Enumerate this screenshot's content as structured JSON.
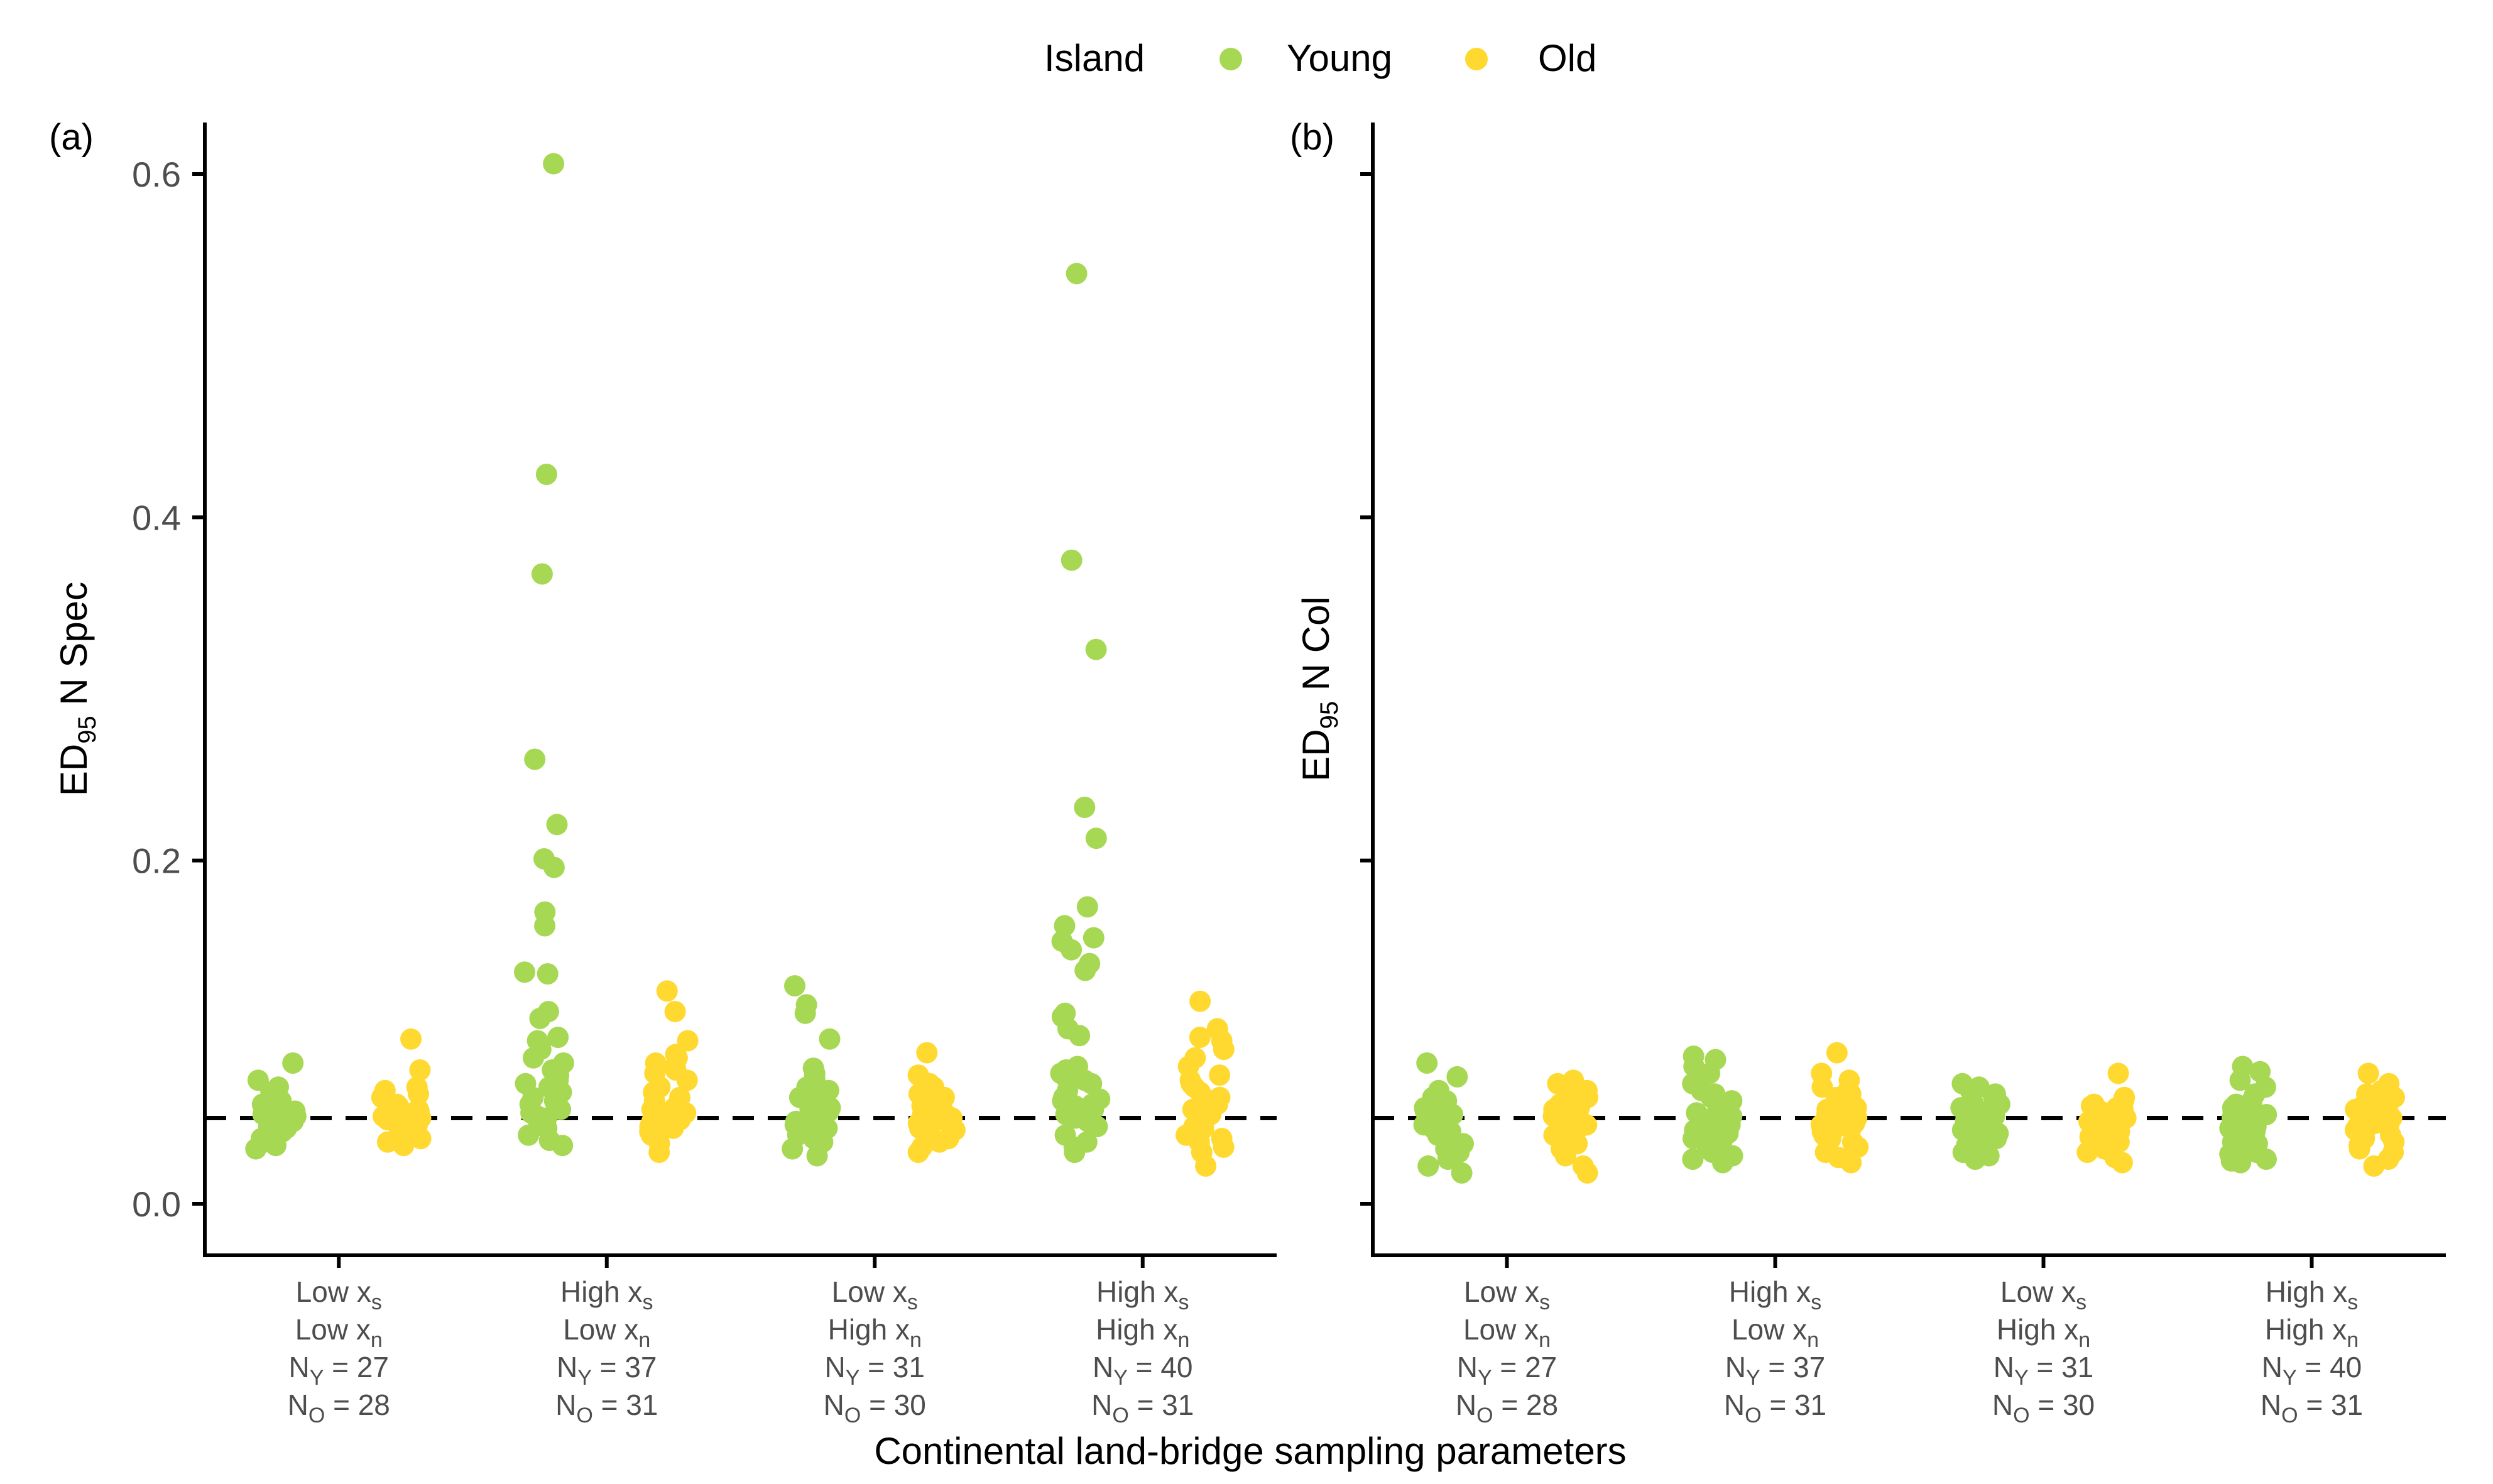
{
  "legend": {
    "title": "Island",
    "items": [
      {
        "label": "Young",
        "color": "#a6d854"
      },
      {
        "label": "Old",
        "color": "#ffd92f"
      }
    ],
    "placement": "top"
  },
  "xlabel": "Continental land-bridge sampling parameters",
  "chart_data": [
    {
      "type": "scatter",
      "panel_label": "(a)",
      "ylabel": {
        "main": "ED",
        "sub": "95",
        "rest": " N Spec"
      },
      "ylim": [
        -0.03,
        0.63
      ],
      "yticks": [
        0.0,
        0.2,
        0.4,
        0.6
      ],
      "ytick_labels": [
        "0.0",
        "0.2",
        "0.4",
        "0.6"
      ],
      "reference_line": 0.05,
      "grid": false,
      "categories": [
        {
          "line1": "Low x",
          "sub1": "s",
          "line2": "Low x",
          "sub2": "n",
          "ny": "27",
          "no": "28"
        },
        {
          "line1": "High x",
          "sub1": "s",
          "line2": "Low x",
          "sub2": "n",
          "ny": "37",
          "no": "31"
        },
        {
          "line1": "Low x",
          "sub1": "s",
          "line2": "High x",
          "sub2": "n",
          "ny": "31",
          "no": "30"
        },
        {
          "line1": "High x",
          "sub1": "s",
          "line2": "High x",
          "sub2": "n",
          "ny": "40",
          "no": "31"
        }
      ],
      "series": [
        {
          "name": "Young",
          "color": "#a6d854",
          "values": [
            [
              0.082,
              0.072,
              0.068,
              0.065,
              0.062,
              0.06,
              0.058,
              0.056,
              0.055,
              0.054,
              0.053,
              0.052,
              0.051,
              0.05,
              0.049,
              0.048,
              0.047,
              0.046,
              0.045,
              0.044,
              0.043,
              0.042,
              0.04,
              0.038,
              0.036,
              0.034,
              0.032
            ],
            [
              0.606,
              0.425,
              0.367,
              0.259,
              0.221,
              0.196,
              0.201,
              0.17,
              0.162,
              0.135,
              0.134,
              0.112,
              0.108,
              0.097,
              0.095,
              0.09,
              0.085,
              0.082,
              0.078,
              0.075,
              0.072,
              0.07,
              0.068,
              0.065,
              0.062,
              0.06,
              0.058,
              0.055,
              0.053,
              0.051,
              0.05,
              0.048,
              0.046,
              0.044,
              0.04,
              0.037,
              0.034
            ],
            [
              0.127,
              0.116,
              0.111,
              0.096,
              0.079,
              0.076,
              0.074,
              0.072,
              0.07,
              0.068,
              0.066,
              0.064,
              0.062,
              0.06,
              0.058,
              0.056,
              0.055,
              0.054,
              0.052,
              0.05,
              0.049,
              0.048,
              0.046,
              0.045,
              0.044,
              0.042,
              0.04,
              0.038,
              0.036,
              0.032,
              0.028
            ],
            [
              0.542,
              0.375,
              0.323,
              0.231,
              0.213,
              0.173,
              0.162,
              0.155,
              0.153,
              0.148,
              0.14,
              0.136,
              0.111,
              0.109,
              0.102,
              0.098,
              0.08,
              0.078,
              0.076,
              0.074,
              0.072,
              0.07,
              0.066,
              0.064,
              0.062,
              0.061,
              0.06,
              0.058,
              0.057,
              0.056,
              0.055,
              0.054,
              0.052,
              0.05,
              0.048,
              0.045,
              0.04,
              0.036,
              0.033,
              0.03
            ]
          ]
        },
        {
          "name": "Old",
          "color": "#ffd92f",
          "values": [
            [
              0.096,
              0.078,
              0.068,
              0.066,
              0.064,
              0.062,
              0.06,
              0.058,
              0.057,
              0.056,
              0.055,
              0.054,
              0.053,
              0.052,
              0.051,
              0.05,
              0.049,
              0.048,
              0.047,
              0.046,
              0.045,
              0.044,
              0.043,
              0.042,
              0.04,
              0.038,
              0.036,
              0.034
            ],
            [
              0.124,
              0.112,
              0.095,
              0.087,
              0.085,
              0.082,
              0.08,
              0.078,
              0.076,
              0.072,
              0.068,
              0.065,
              0.062,
              0.06,
              0.058,
              0.056,
              0.055,
              0.054,
              0.053,
              0.052,
              0.051,
              0.05,
              0.049,
              0.048,
              0.046,
              0.045,
              0.044,
              0.042,
              0.04,
              0.035,
              0.03
            ],
            [
              0.088,
              0.075,
              0.07,
              0.068,
              0.066,
              0.064,
              0.062,
              0.06,
              0.058,
              0.057,
              0.056,
              0.055,
              0.054,
              0.053,
              0.052,
              0.051,
              0.05,
              0.049,
              0.048,
              0.047,
              0.046,
              0.045,
              0.044,
              0.043,
              0.042,
              0.04,
              0.038,
              0.036,
              0.033,
              0.03
            ],
            [
              0.118,
              0.102,
              0.097,
              0.095,
              0.09,
              0.085,
              0.08,
              0.075,
              0.072,
              0.07,
              0.068,
              0.065,
              0.062,
              0.06,
              0.058,
              0.056,
              0.055,
              0.054,
              0.052,
              0.05,
              0.048,
              0.046,
              0.045,
              0.044,
              0.042,
              0.04,
              0.038,
              0.036,
              0.033,
              0.03,
              0.022
            ]
          ]
        }
      ]
    },
    {
      "type": "scatter",
      "panel_label": "(b)",
      "ylabel": {
        "main": "ED",
        "sub": "95",
        "rest": " N Col"
      },
      "ylim": [
        -0.03,
        0.63
      ],
      "yticks": [
        0.0,
        0.2,
        0.4,
        0.6
      ],
      "ytick_labels": [
        "",
        "",
        "",
        ""
      ],
      "reference_line": 0.05,
      "grid": false,
      "categories": [
        {
          "line1": "Low x",
          "sub1": "s",
          "line2": "Low x",
          "sub2": "n",
          "ny": "27",
          "no": "28"
        },
        {
          "line1": "High x",
          "sub1": "s",
          "line2": "Low x",
          "sub2": "n",
          "ny": "37",
          "no": "31"
        },
        {
          "line1": "Low x",
          "sub1": "s",
          "line2": "High x",
          "sub2": "n",
          "ny": "31",
          "no": "30"
        },
        {
          "line1": "High x",
          "sub1": "s",
          "line2": "High x",
          "sub2": "n",
          "ny": "40",
          "no": "31"
        }
      ],
      "series": [
        {
          "name": "Young",
          "color": "#a6d854",
          "values": [
            [
              0.082,
              0.074,
              0.066,
              0.062,
              0.06,
              0.058,
              0.056,
              0.055,
              0.054,
              0.053,
              0.052,
              0.05,
              0.049,
              0.048,
              0.047,
              0.046,
              0.045,
              0.044,
              0.042,
              0.04,
              0.038,
              0.035,
              0.032,
              0.03,
              0.026,
              0.022,
              0.018
            ],
            [
              0.086,
              0.084,
              0.08,
              0.076,
              0.07,
              0.066,
              0.064,
              0.062,
              0.06,
              0.058,
              0.057,
              0.056,
              0.055,
              0.054,
              0.053,
              0.052,
              0.051,
              0.05,
              0.049,
              0.048,
              0.047,
              0.046,
              0.045,
              0.044,
              0.043,
              0.042,
              0.041,
              0.04,
              0.039,
              0.038,
              0.036,
              0.034,
              0.032,
              0.03,
              0.028,
              0.026,
              0.024
            ],
            [
              0.07,
              0.068,
              0.066,
              0.064,
              0.062,
              0.06,
              0.058,
              0.056,
              0.055,
              0.054,
              0.053,
              0.052,
              0.051,
              0.05,
              0.049,
              0.048,
              0.047,
              0.046,
              0.045,
              0.044,
              0.043,
              0.042,
              0.041,
              0.04,
              0.038,
              0.036,
              0.034,
              0.032,
              0.03,
              0.028,
              0.026
            ],
            [
              0.08,
              0.077,
              0.072,
              0.068,
              0.064,
              0.06,
              0.058,
              0.056,
              0.055,
              0.054,
              0.053,
              0.052,
              0.051,
              0.05,
              0.049,
              0.048,
              0.047,
              0.046,
              0.045,
              0.044,
              0.043,
              0.042,
              0.041,
              0.04,
              0.039,
              0.038,
              0.037,
              0.036,
              0.035,
              0.034,
              0.033,
              0.032,
              0.031,
              0.03,
              0.029,
              0.028,
              0.027,
              0.026,
              0.025,
              0.024
            ]
          ]
        },
        {
          "name": "Old",
          "color": "#ffd92f",
          "values": [
            [
              0.072,
              0.07,
              0.066,
              0.064,
              0.062,
              0.06,
              0.058,
              0.056,
              0.055,
              0.054,
              0.053,
              0.052,
              0.051,
              0.05,
              0.049,
              0.048,
              0.047,
              0.046,
              0.045,
              0.044,
              0.042,
              0.04,
              0.038,
              0.035,
              0.032,
              0.028,
              0.022,
              0.018
            ],
            [
              0.088,
              0.076,
              0.072,
              0.068,
              0.066,
              0.064,
              0.062,
              0.06,
              0.058,
              0.057,
              0.056,
              0.055,
              0.054,
              0.053,
              0.052,
              0.051,
              0.05,
              0.049,
              0.048,
              0.047,
              0.046,
              0.045,
              0.044,
              0.042,
              0.04,
              0.038,
              0.036,
              0.033,
              0.03,
              0.027,
              0.024
            ],
            [
              0.076,
              0.062,
              0.06,
              0.058,
              0.057,
              0.056,
              0.055,
              0.054,
              0.053,
              0.052,
              0.051,
              0.05,
              0.049,
              0.048,
              0.047,
              0.046,
              0.045,
              0.044,
              0.043,
              0.042,
              0.041,
              0.04,
              0.039,
              0.038,
              0.036,
              0.034,
              0.032,
              0.03,
              0.027,
              0.024
            ],
            [
              0.076,
              0.07,
              0.066,
              0.064,
              0.062,
              0.06,
              0.058,
              0.057,
              0.056,
              0.055,
              0.054,
              0.053,
              0.052,
              0.051,
              0.05,
              0.049,
              0.048,
              0.047,
              0.046,
              0.045,
              0.044,
              0.043,
              0.042,
              0.04,
              0.038,
              0.036,
              0.034,
              0.032,
              0.03,
              0.026,
              0.022
            ]
          ]
        }
      ]
    }
  ]
}
